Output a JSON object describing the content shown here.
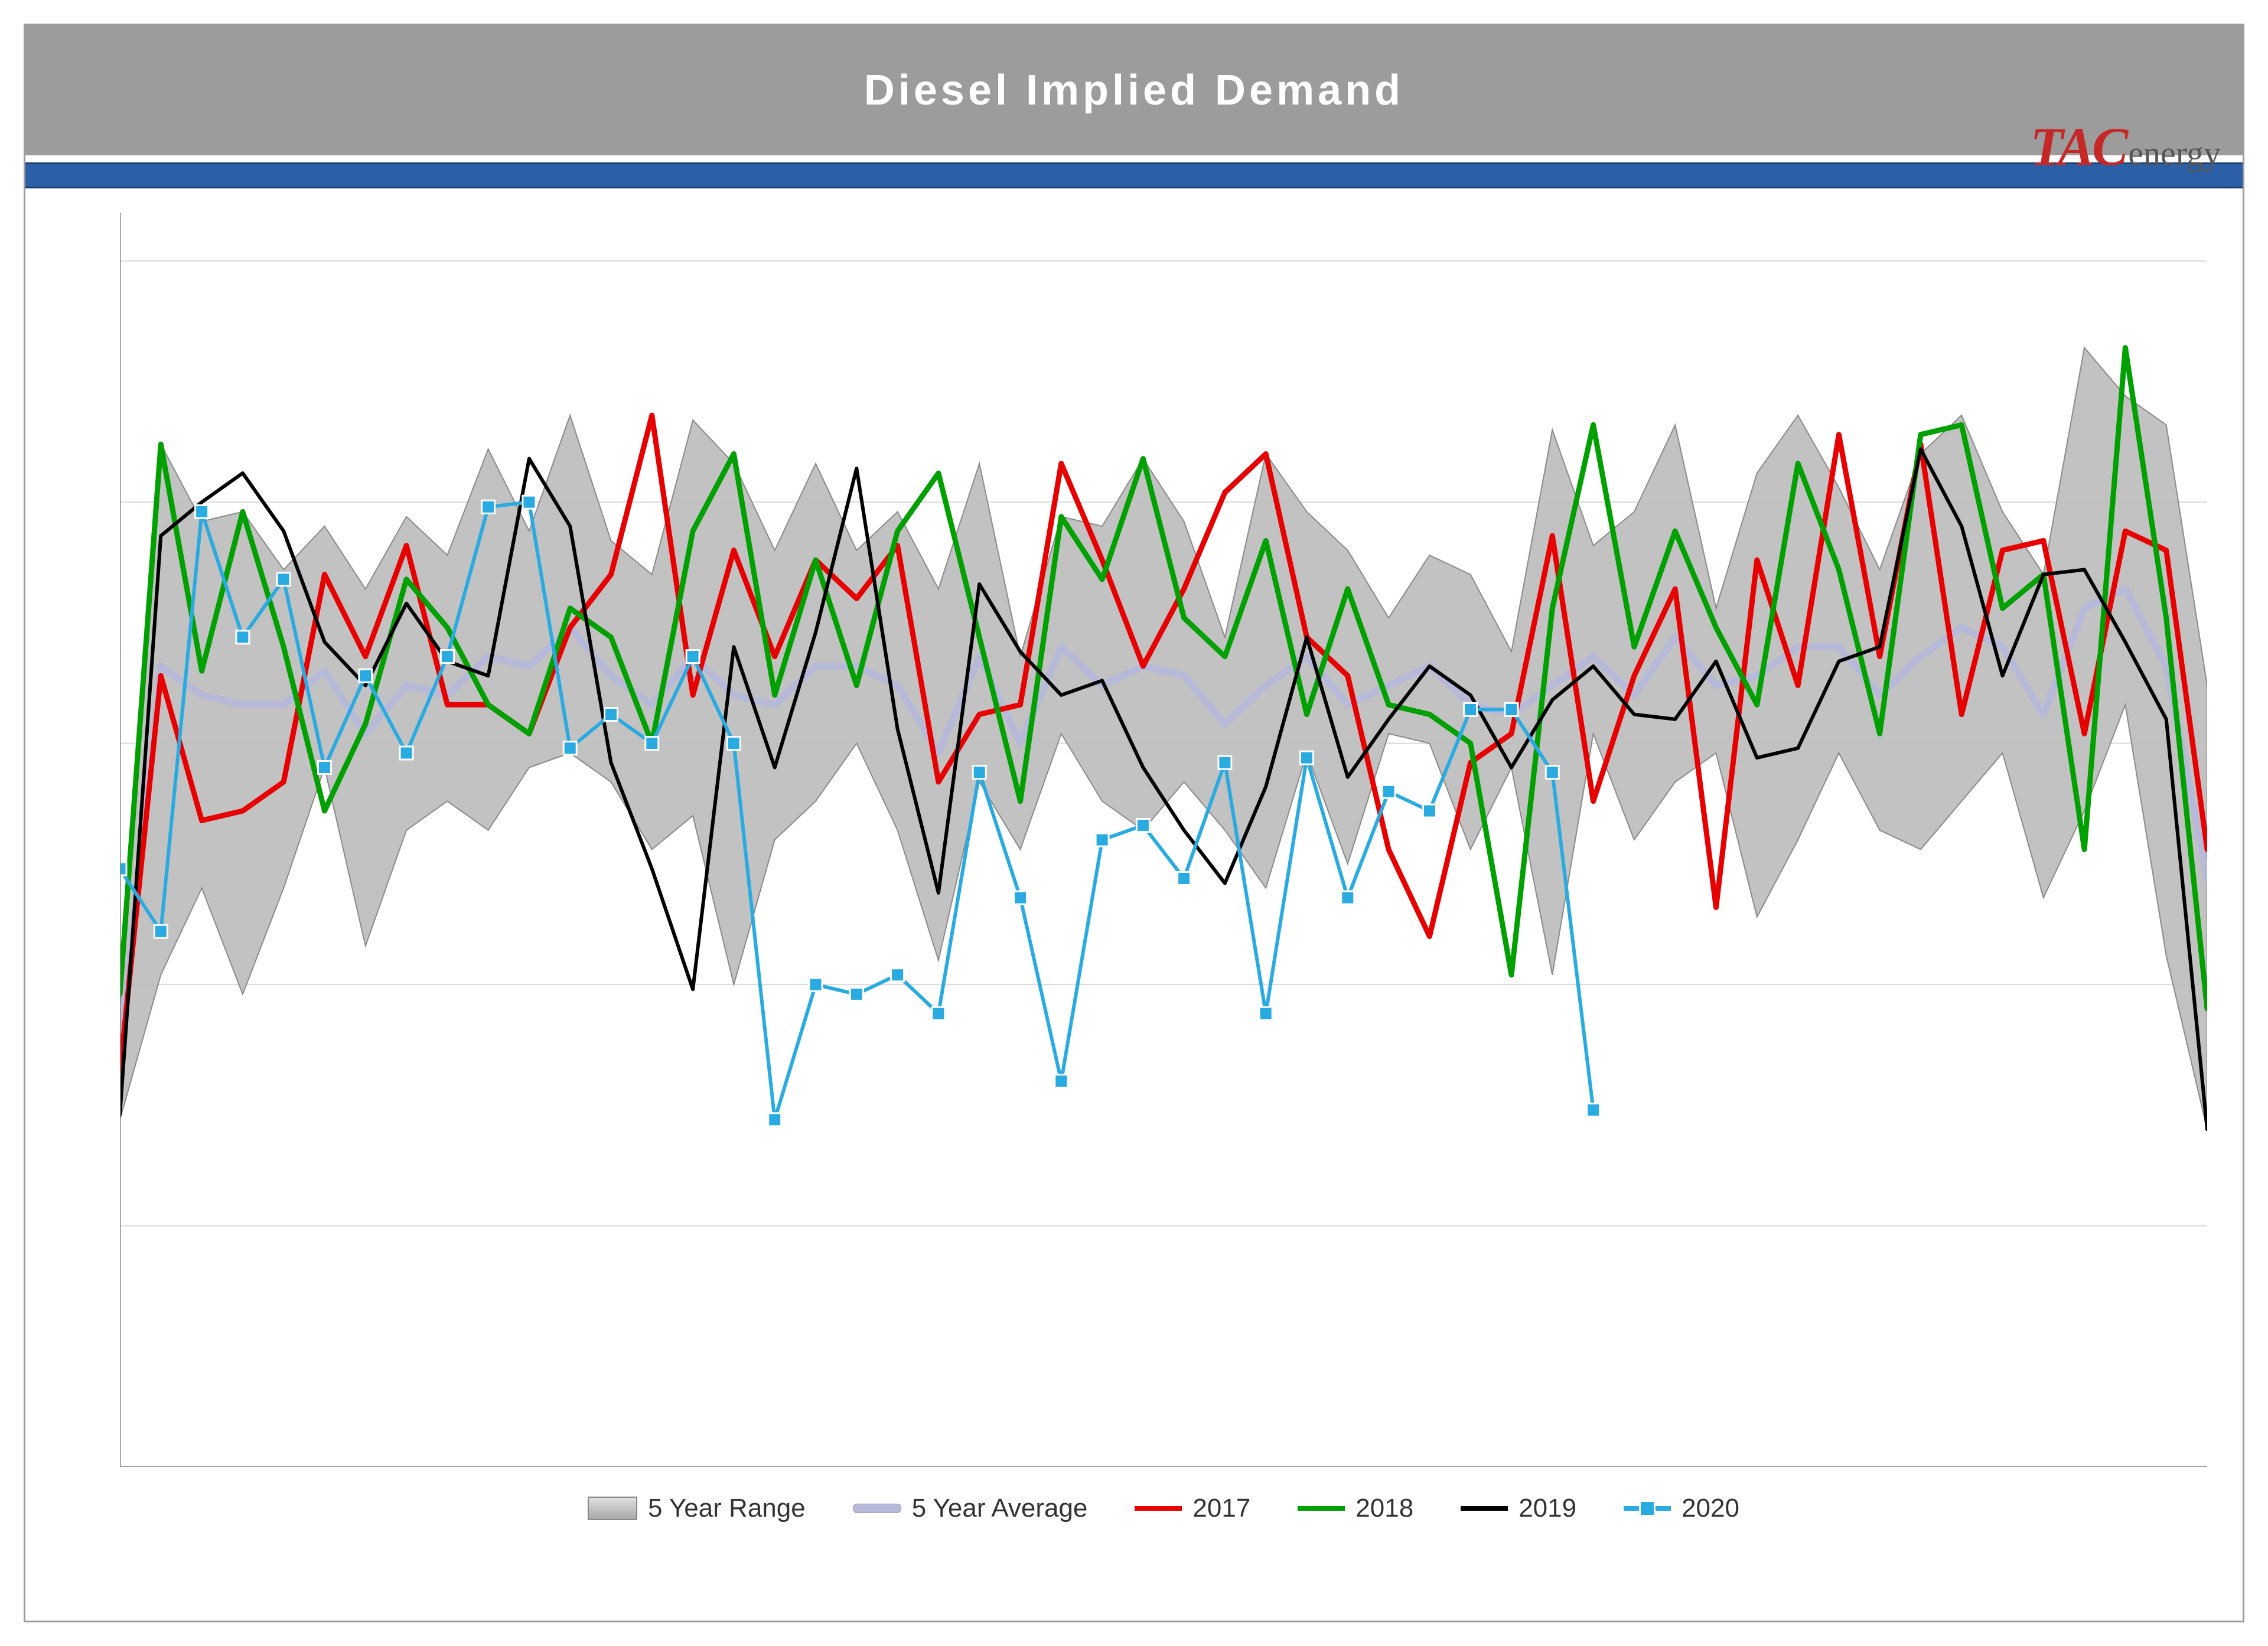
{
  "title": "Diesel Implied Demand",
  "logo": {
    "tac": "TAC",
    "energy": "energy"
  },
  "chart": {
    "type": "line-with-range-band",
    "background_color": "#ffffff",
    "title_bg": "#9c9c9c",
    "title_color": "#ffffff",
    "title_fontsize": 72,
    "accent_strip_color": "#2b5fa6",
    "outer_border_color": "#9c9c9c",
    "grid_color": "#d9d9d9",
    "axis_color": "#888888",
    "n_weeks": 52,
    "xlim": [
      1,
      52
    ],
    "ylim": [
      2400,
      5000
    ],
    "ytick_step": 500,
    "legend_fontsize": 44,
    "legend_position": "bottom",
    "range_band": {
      "label": "5 Year Range",
      "fill": "#bfbfbf",
      "stroke": "#8a8a8a",
      "upper": [
        3350,
        4520,
        4360,
        4380,
        4260,
        4350,
        4220,
        4370,
        4290,
        4510,
        4340,
        4580,
        4320,
        4250,
        4570,
        4480,
        4300,
        4480,
        4300,
        4380,
        4220,
        4480,
        4080,
        4370,
        4350,
        4490,
        4360,
        4120,
        4500,
        4380,
        4300,
        4160,
        4290,
        4250,
        4090,
        4550,
        4310,
        4380,
        4560,
        4180,
        4460,
        4580,
        4430,
        4260,
        4500,
        4580,
        4380,
        4250,
        4720,
        4620,
        4560,
        4020
      ],
      "lower": [
        3120,
        3420,
        3600,
        3380,
        3600,
        3850,
        3480,
        3720,
        3780,
        3720,
        3850,
        3880,
        3820,
        3680,
        3750,
        3400,
        3700,
        3780,
        3900,
        3720,
        3450,
        3820,
        3680,
        3920,
        3780,
        3720,
        3820,
        3720,
        3600,
        3880,
        3650,
        3920,
        3900,
        3680,
        3850,
        3420,
        3920,
        3700,
        3820,
        3880,
        3540,
        3700,
        3880,
        3720,
        3680,
        3780,
        3880,
        3580,
        3760,
        3980,
        3460,
        3100
      ]
    },
    "series": [
      {
        "name": "5 Year Average",
        "label": "5 Year Average",
        "color": "#b7b9d8",
        "stroke_color": "#9294c0",
        "width": 12,
        "marker": "none",
        "values": [
          3250,
          4060,
          4000,
          3980,
          3980,
          4050,
          3920,
          4020,
          4000,
          4080,
          4060,
          4140,
          4040,
          3980,
          4080,
          4000,
          3980,
          4060,
          4060,
          4020,
          3880,
          4080,
          3900,
          4100,
          4020,
          4060,
          4040,
          3940,
          4020,
          4080,
          3980,
          4020,
          4060,
          3980,
          3960,
          4020,
          4080,
          4000,
          4120,
          4020,
          4040,
          4100,
          4100,
          4000,
          4080,
          4140,
          4100,
          3960,
          4180,
          4220,
          4060,
          3620
        ]
      },
      {
        "name": "2017",
        "label": "2017",
        "color": "#e60000",
        "width": 9,
        "marker": "none",
        "values": [
          3220,
          4040,
          3740,
          3760,
          3820,
          4250,
          4080,
          4310,
          3980,
          3980,
          3920,
          4140,
          4250,
          4580,
          4000,
          4300,
          4080,
          4280,
          4200,
          4310,
          3820,
          3960,
          3980,
          4480,
          4280,
          4060,
          4220,
          4420,
          4500,
          4120,
          4040,
          3680,
          3500,
          3860,
          3920,
          4330,
          3780,
          4040,
          4220,
          3560,
          4280,
          4020,
          4540,
          4080,
          4520,
          3960,
          4300,
          4320,
          3920,
          4340,
          4300,
          3680
        ]
      },
      {
        "name": "2018",
        "label": "2018",
        "color": "#00a000",
        "width": 9,
        "marker": "none",
        "values": [
          3380,
          4520,
          4050,
          4380,
          4100,
          3760,
          3940,
          4240,
          4140,
          3980,
          3920,
          4180,
          4120,
          3900,
          4340,
          4500,
          4000,
          4280,
          4020,
          4340,
          4460,
          4120,
          3780,
          4370,
          4240,
          4490,
          4160,
          4080,
          4320,
          3960,
          4220,
          3980,
          3960,
          3900,
          3420,
          4180,
          4560,
          4100,
          4340,
          4140,
          3980,
          4480,
          4260,
          3920,
          4540,
          4560,
          4180,
          4250,
          3680,
          4720,
          4160,
          3350
        ]
      },
      {
        "name": "2019",
        "label": "2019",
        "color": "#000000",
        "width": 6,
        "marker": "none",
        "values": [
          3130,
          4330,
          4400,
          4460,
          4340,
          4110,
          4020,
          4190,
          4070,
          4040,
          4490,
          4350,
          3860,
          3640,
          3390,
          4100,
          3850,
          4130,
          4470,
          3930,
          3590,
          4230,
          4090,
          4000,
          4030,
          3850,
          3720,
          3610,
          3810,
          4120,
          3830,
          3950,
          4060,
          4000,
          3850,
          3990,
          4060,
          3960,
          3950,
          4070,
          3870,
          3890,
          4070,
          4100,
          4510,
          4350,
          4040,
          4250,
          4260,
          4110,
          3950,
          3100
        ]
      },
      {
        "name": "2020",
        "label": "2020",
        "color": "#29abe2",
        "width": 6,
        "marker": "square",
        "marker_fill": "#29abe2",
        "marker_stroke": "#ffffff",
        "marker_size": 22,
        "values": [
          3640,
          3510,
          4380,
          4120,
          4240,
          3850,
          4040,
          3880,
          4080,
          4390,
          4400,
          3890,
          3960,
          3900,
          4080,
          3900,
          3120,
          3400,
          3380,
          3420,
          3340,
          3840,
          3580,
          3200,
          3700,
          3730,
          3620,
          3860,
          3340,
          3870,
          3580,
          3800,
          3760,
          3970,
          3970,
          3840,
          3140
        ]
      }
    ],
    "legend": [
      {
        "key": "range",
        "label": "5 Year Range"
      },
      {
        "key": "avg",
        "label": "5 Year Average"
      },
      {
        "key": "2017",
        "label": "2017"
      },
      {
        "key": "2018",
        "label": "2018"
      },
      {
        "key": "2019",
        "label": "2019"
      },
      {
        "key": "2020",
        "label": "2020"
      }
    ]
  }
}
